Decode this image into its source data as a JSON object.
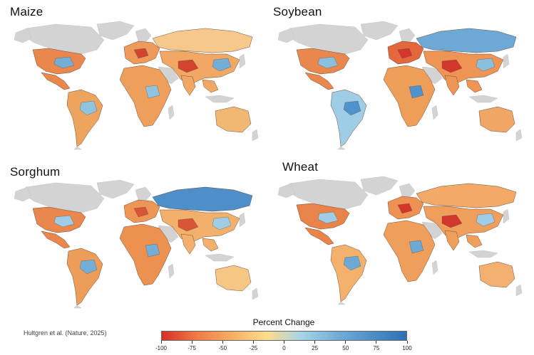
{
  "panels": [
    {
      "title": "Maize",
      "key": "maize",
      "colors": {
        "namerica": "#e9874c",
        "samerica": "#eda45f",
        "europe": "#ee9a5a",
        "africa": "#ee9f5c",
        "asia": "#f0a864",
        "australia": "#f3b774",
        "russia": "#f7c88b",
        "accent1": "#8fc4e0",
        "accent2": "#d2442f",
        "accent3": "#74aed7"
      }
    },
    {
      "title": "Soybean",
      "key": "soybean",
      "colors": {
        "namerica": "#e9874c",
        "samerica": "#9fcde6",
        "europe": "#e4673d",
        "africa": "#ef9e5a",
        "asia": "#ee9454",
        "australia": "#f0a665",
        "russia": "#6ea9d5",
        "accent1": "#4f92cc",
        "accent2": "#d3362a",
        "accent3": "#8ac0de"
      }
    },
    {
      "title": "Sorghum",
      "key": "sorghum",
      "colors": {
        "namerica": "#e9874c",
        "samerica": "#ed9d5a",
        "europe": "#ee9656",
        "africa": "#ec914f",
        "asia": "#f2b06c",
        "australia": "#f6c684",
        "russia": "#4f8fc9",
        "accent1": "#74aed7",
        "accent2": "#da5535",
        "accent3": "#9fcde6"
      }
    },
    {
      "title": "Wheat",
      "key": "wheat",
      "colors": {
        "namerica": "#e8834a",
        "samerica": "#f4b16c",
        "europe": "#ed9253",
        "africa": "#ef9e5b",
        "asia": "#ef9e5b",
        "australia": "#f3b071",
        "russia": "#f2aa66",
        "accent1": "#6ea9d5",
        "accent2": "#d3362a",
        "accent3": "#9fcde6"
      }
    }
  ],
  "credit": "Hultgren et al. (Nature, 2025)",
  "legend": {
    "title": "Percent Change",
    "min": -100,
    "max": 100,
    "ticks": [
      "-100",
      "-75",
      "-50",
      "-25",
      "0",
      "25",
      "50",
      "75",
      "100"
    ],
    "gradient": [
      "#d73027",
      "#ef7b45",
      "#f7ae63",
      "#fedc8c",
      "#a6d4e8",
      "#74aed7",
      "#4f8fc9",
      "#2d70b6"
    ]
  },
  "land_color": "#d3d3d3"
}
